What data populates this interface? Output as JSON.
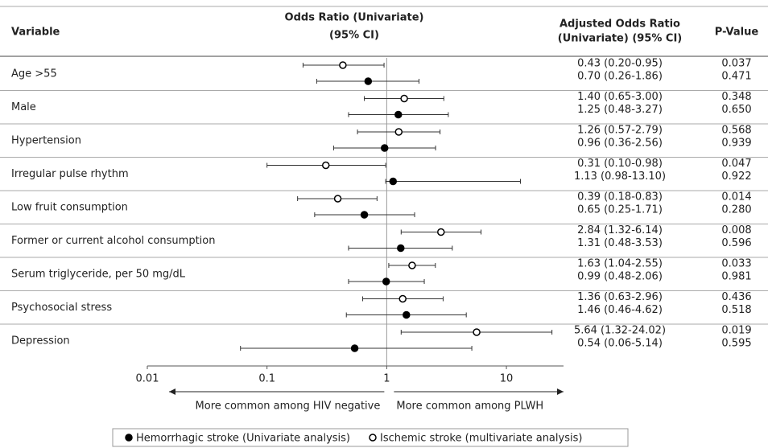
{
  "chart_data": {
    "type": "forest",
    "column_headers": {
      "variable": "Variable",
      "odds_ratio": [
        "Odds Ratio (Univariate)",
        "(95% CI)"
      ],
      "adjusted": [
        "Adjusted Odds Ratio",
        "(Univariate) (95% CI)"
      ],
      "p_value": "P-Value"
    },
    "categories": [
      "Age  >55",
      "Male",
      "Hypertension",
      "Irregular pulse rhythm",
      "Low fruit consumption",
      "Former or current alcohol consumption",
      "Serum triglyceride, per 50 mg/dL",
      "Psychosocial stress",
      "Depression"
    ],
    "series": [
      {
        "name": "Hemorrhagic stroke (Univariate analysis)",
        "color": "#000000",
        "marker": "filled",
        "values": [
          0.7,
          1.25,
          0.96,
          1.13,
          0.65,
          1.31,
          0.99,
          1.46,
          0.54
        ],
        "lower": [
          0.26,
          0.48,
          0.36,
          0.98,
          0.25,
          0.48,
          0.48,
          0.46,
          0.06
        ],
        "upper": [
          1.86,
          3.27,
          2.56,
          13.1,
          1.71,
          3.53,
          2.06,
          4.62,
          5.14
        ],
        "value_labels": [
          "0.70 (0.26-1.86)",
          "1.25 (0.48-3.27)",
          "0.96 (0.36-2.56)",
          "1.13 (0.98-13.10)",
          "0.65 (0.25-1.71)",
          "1.31 (0.48-3.53)",
          "0.99 (0.48-2.06)",
          "1.46 (0.46-4.62)",
          "0.54 (0.06-5.14)"
        ],
        "p_values": [
          "0.471",
          "0.650",
          "0.939",
          "0.922",
          "0.280",
          "0.596",
          "0.981",
          "0.518",
          "0.595"
        ]
      },
      {
        "name": "Ischemic stroke (multivariate analysis)",
        "color": "#000000",
        "marker": "open",
        "values": [
          0.43,
          1.4,
          1.26,
          0.31,
          0.39,
          2.84,
          1.63,
          1.36,
          5.64
        ],
        "lower": [
          0.2,
          0.65,
          0.57,
          0.1,
          0.18,
          1.32,
          1.04,
          0.63,
          1.32
        ],
        "upper": [
          0.95,
          3.0,
          2.79,
          0.98,
          0.83,
          6.14,
          2.55,
          2.96,
          24.02
        ],
        "value_labels": [
          "0.43 (0.20-0.95)",
          "1.40 (0.65-3.00)",
          "1.26 (0.57-2.79)",
          "0.31 (0.10-0.98)",
          "0.39 (0.18-0.83)",
          "2.84 (1.32-6.14)",
          "1.63 (1.04-2.55)",
          "1.36 (0.63-2.96)",
          "5.64 (1.32-24.02)"
        ],
        "p_values": [
          "0.037",
          "0.348",
          "0.568",
          "0.047",
          "0.014",
          "0.008",
          "0.033",
          "0.436",
          "0.019"
        ]
      }
    ],
    "x_log": true,
    "xlim": [
      0.01,
      30
    ],
    "xticks": [
      0.01,
      0.1,
      1,
      10
    ],
    "reference_value": 1,
    "arrow_labels": [
      "More common among HIV negative",
      "More common among PLWH"
    ]
  }
}
